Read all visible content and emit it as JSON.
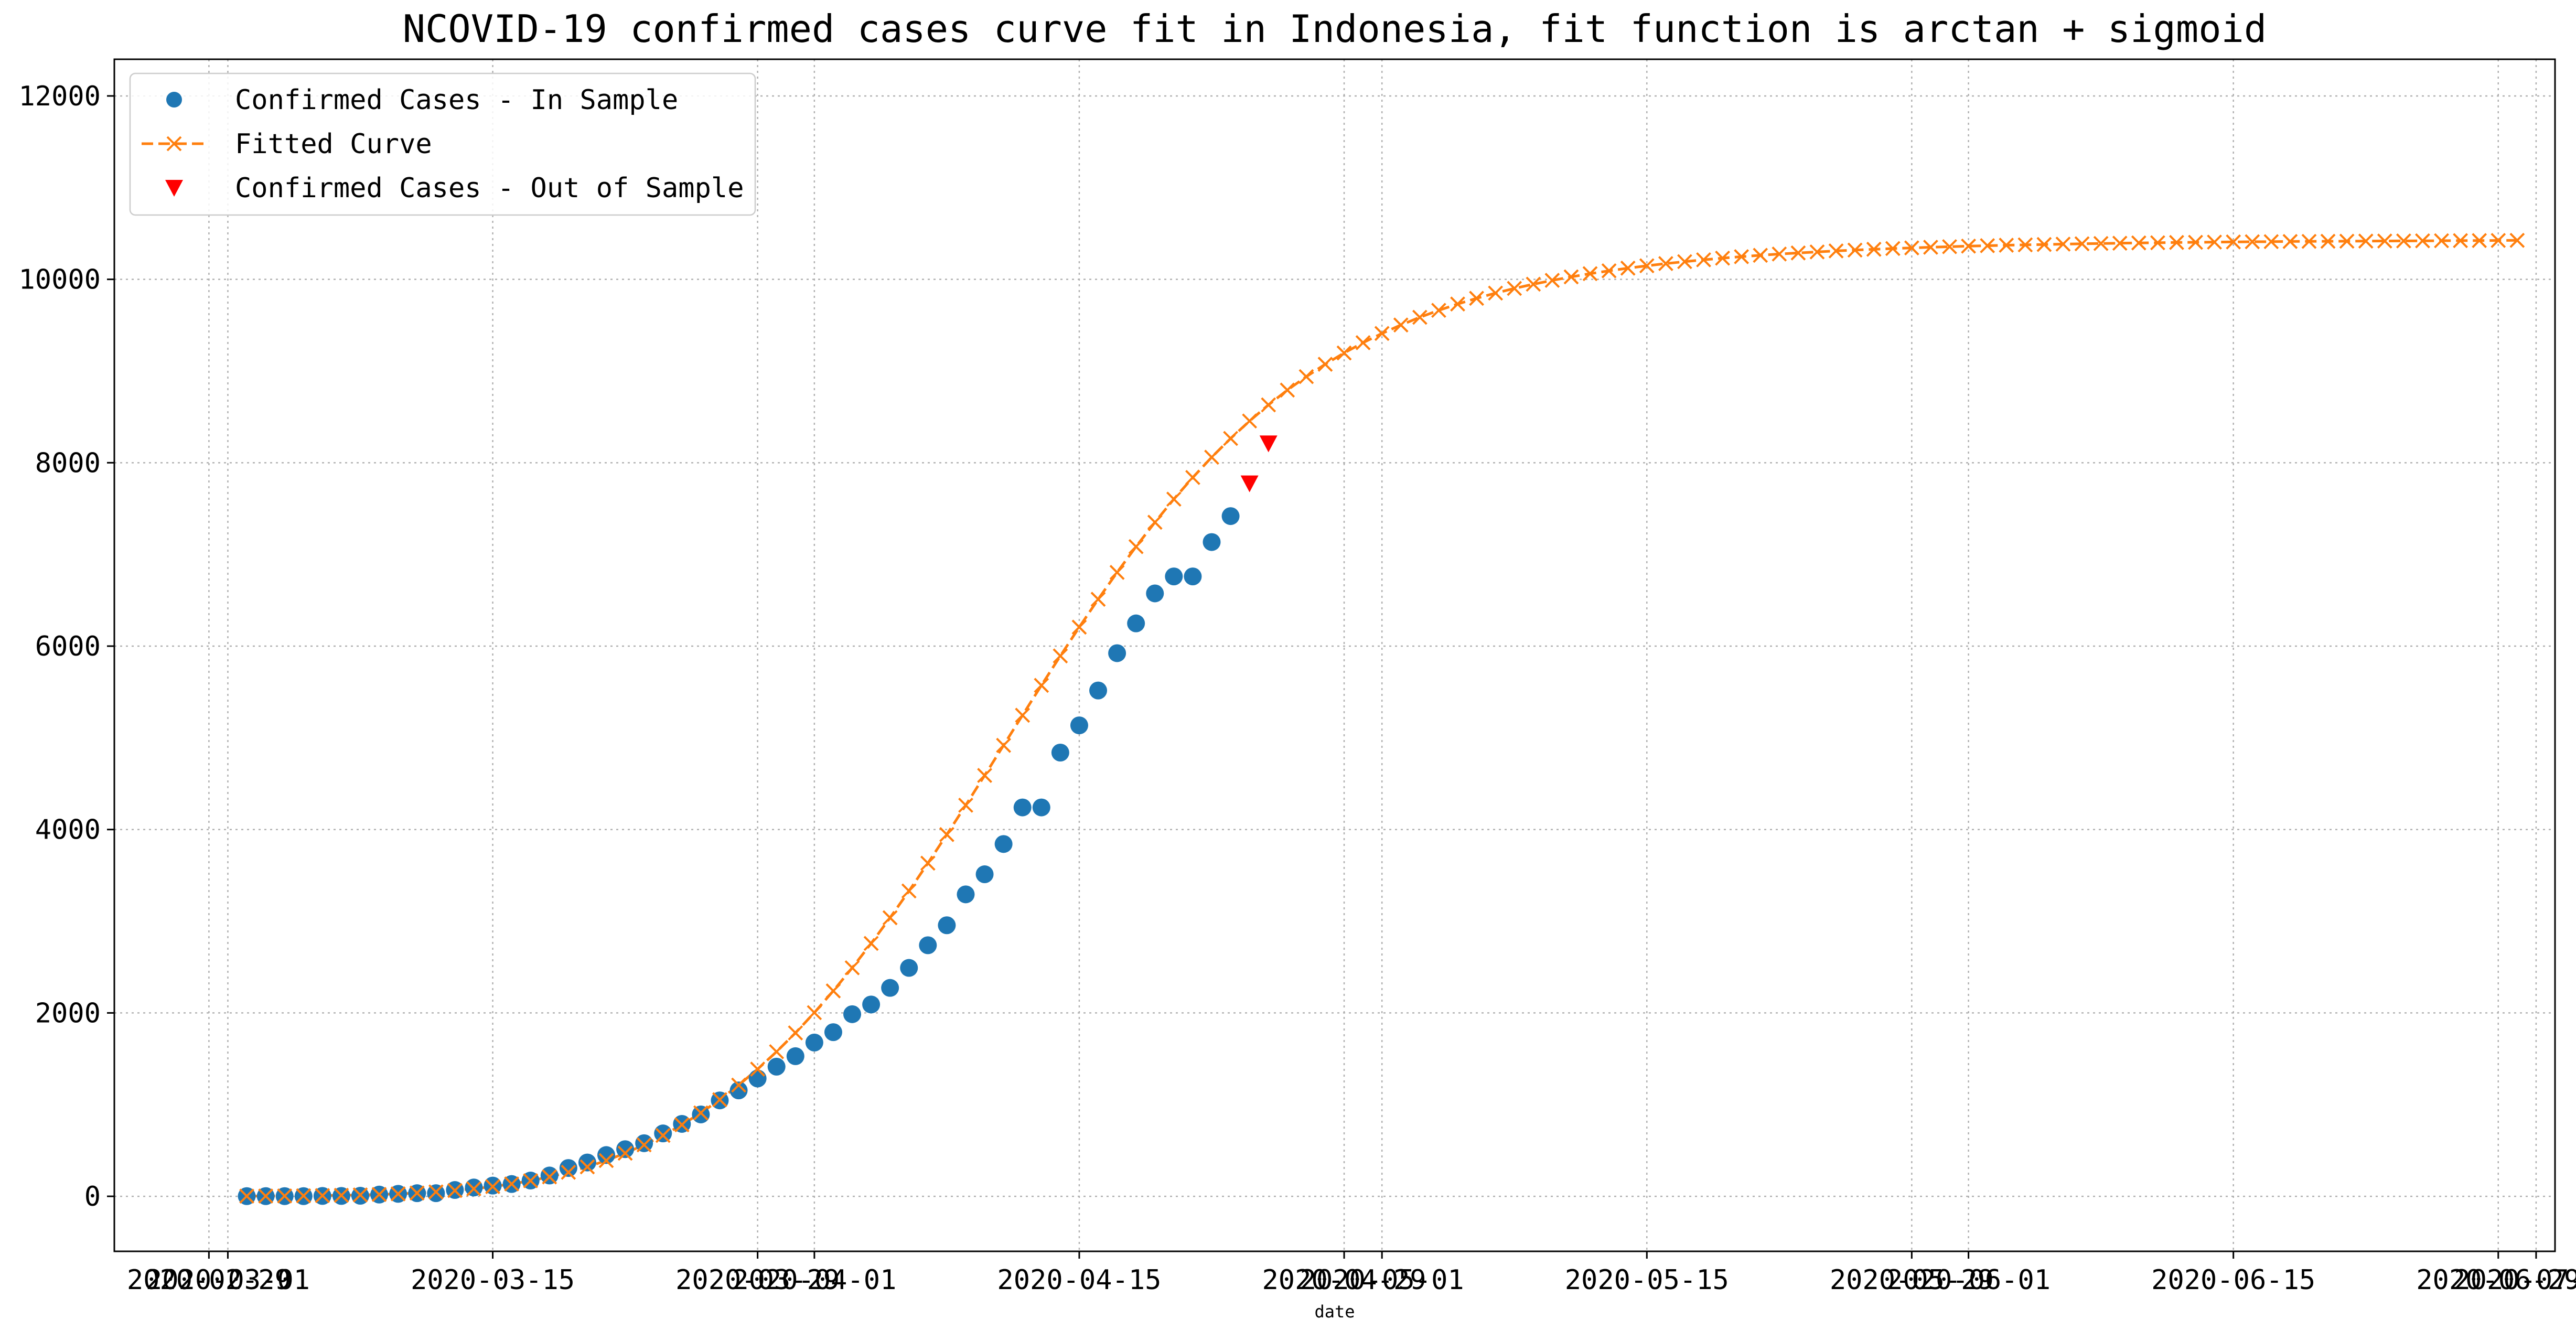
{
  "chart_data": {
    "type": "scatter",
    "title": "NCOVID-19 confirmed cases curve fit in Indonesia, fit function is arctan + sigmoid",
    "xlabel": "date",
    "ylabel": "",
    "x_axis_type": "date",
    "xlim": [
      "2020-02-24",
      "2020-07-02"
    ],
    "ylim": [
      -600,
      12400
    ],
    "grid": true,
    "legend_position": "top-left",
    "x_tick_labels": [
      "2020-02-29",
      "2020-03-01",
      "2020-03-15",
      "2020-03-29",
      "2020-04-01",
      "2020-04-15",
      "2020-04-29",
      "2020-05-01",
      "2020-05-15",
      "2020-05-29",
      "2020-06-01",
      "2020-06-15",
      "2020-06-29",
      "2020-07-01"
    ],
    "y_ticks": [
      0,
      2000,
      4000,
      6000,
      8000,
      10000,
      12000
    ],
    "y_tick_labels": [
      "0",
      "2000",
      "4000",
      "6000",
      "8000",
      "10000",
      "12000"
    ],
    "series": [
      {
        "name": "Confirmed Cases - In Sample",
        "marker": "circle",
        "color": "#1f77b4",
        "x": [
          "2020-03-02",
          "2020-03-03",
          "2020-03-04",
          "2020-03-05",
          "2020-03-06",
          "2020-03-07",
          "2020-03-08",
          "2020-03-09",
          "2020-03-10",
          "2020-03-11",
          "2020-03-12",
          "2020-03-13",
          "2020-03-14",
          "2020-03-15",
          "2020-03-16",
          "2020-03-17",
          "2020-03-18",
          "2020-03-19",
          "2020-03-20",
          "2020-03-21",
          "2020-03-22",
          "2020-03-23",
          "2020-03-24",
          "2020-03-25",
          "2020-03-26",
          "2020-03-27",
          "2020-03-28",
          "2020-03-29",
          "2020-03-30",
          "2020-03-31",
          "2020-04-01",
          "2020-04-02",
          "2020-04-03",
          "2020-04-04",
          "2020-04-05",
          "2020-04-06",
          "2020-04-07",
          "2020-04-08",
          "2020-04-09",
          "2020-04-10",
          "2020-04-11",
          "2020-04-12",
          "2020-04-13",
          "2020-04-14",
          "2020-04-15",
          "2020-04-16",
          "2020-04-17",
          "2020-04-18",
          "2020-04-19",
          "2020-04-20",
          "2020-04-21",
          "2020-04-22",
          "2020-04-23"
        ],
        "y": [
          2,
          2,
          2,
          2,
          4,
          4,
          6,
          19,
          27,
          34,
          34,
          69,
          96,
          117,
          134,
          172,
          227,
          309,
          369,
          450,
          514,
          579,
          686,
          790,
          893,
          1046,
          1155,
          1285,
          1414,
          1528,
          1677,
          1790,
          1986,
          2092,
          2273,
          2491,
          2738,
          2956,
          3293,
          3512,
          3842,
          4241,
          4241,
          4839,
          5136,
          5516,
          5923,
          6248,
          6575,
          6760,
          6760,
          7135,
          7418
        ]
      },
      {
        "name": "Fitted Curve",
        "marker": "x",
        "line": "dashed",
        "color": "#ff7f0e",
        "x_start": "2020-03-02",
        "x_step_days": 1,
        "y": [
          2,
          3,
          4,
          6,
          8,
          11,
          15,
          20,
          27,
          36,
          48,
          63,
          82,
          106,
          135,
          170,
          212,
          262,
          321,
          390,
          470,
          561,
          664,
          780,
          910,
          1054,
          1213,
          1387,
          1577,
          1782,
          2003,
          2240,
          2492,
          2758,
          3038,
          3330,
          3633,
          3945,
          4265,
          4590,
          4918,
          5246,
          5572,
          5893,
          6207,
          6511,
          6804,
          7085,
          7351,
          7603,
          7839,
          8060,
          8265,
          8455,
          8631,
          8792,
          8939,
          9074,
          9197,
          9309,
          9410,
          9502,
          9586,
          9662,
          9731,
          9793,
          9850,
          9901,
          9947,
          9989,
          10027,
          10062,
          10093,
          10122,
          10148,
          10172,
          10193,
          10213,
          10231,
          10247,
          10262,
          10276,
          10288,
          10299,
          10310,
          10319,
          10328,
          10336,
          10343,
          10350,
          10356,
          10362,
          10367,
          10372,
          10376,
          10380,
          10384,
          10388,
          10391,
          10394,
          10397,
          10399,
          10402,
          10404,
          10406,
          10408,
          10410,
          10411,
          10413,
          10414,
          10415,
          10416,
          10417,
          10418,
          10419,
          10420,
          10421,
          10422,
          10423,
          10424,
          10425
        ]
      },
      {
        "name": "Confirmed Cases - Out of Sample",
        "marker": "triangle-down",
        "color": "#ff0000",
        "x": [
          "2020-04-24",
          "2020-04-25"
        ],
        "y": [
          7775,
          8211
        ]
      }
    ]
  }
}
